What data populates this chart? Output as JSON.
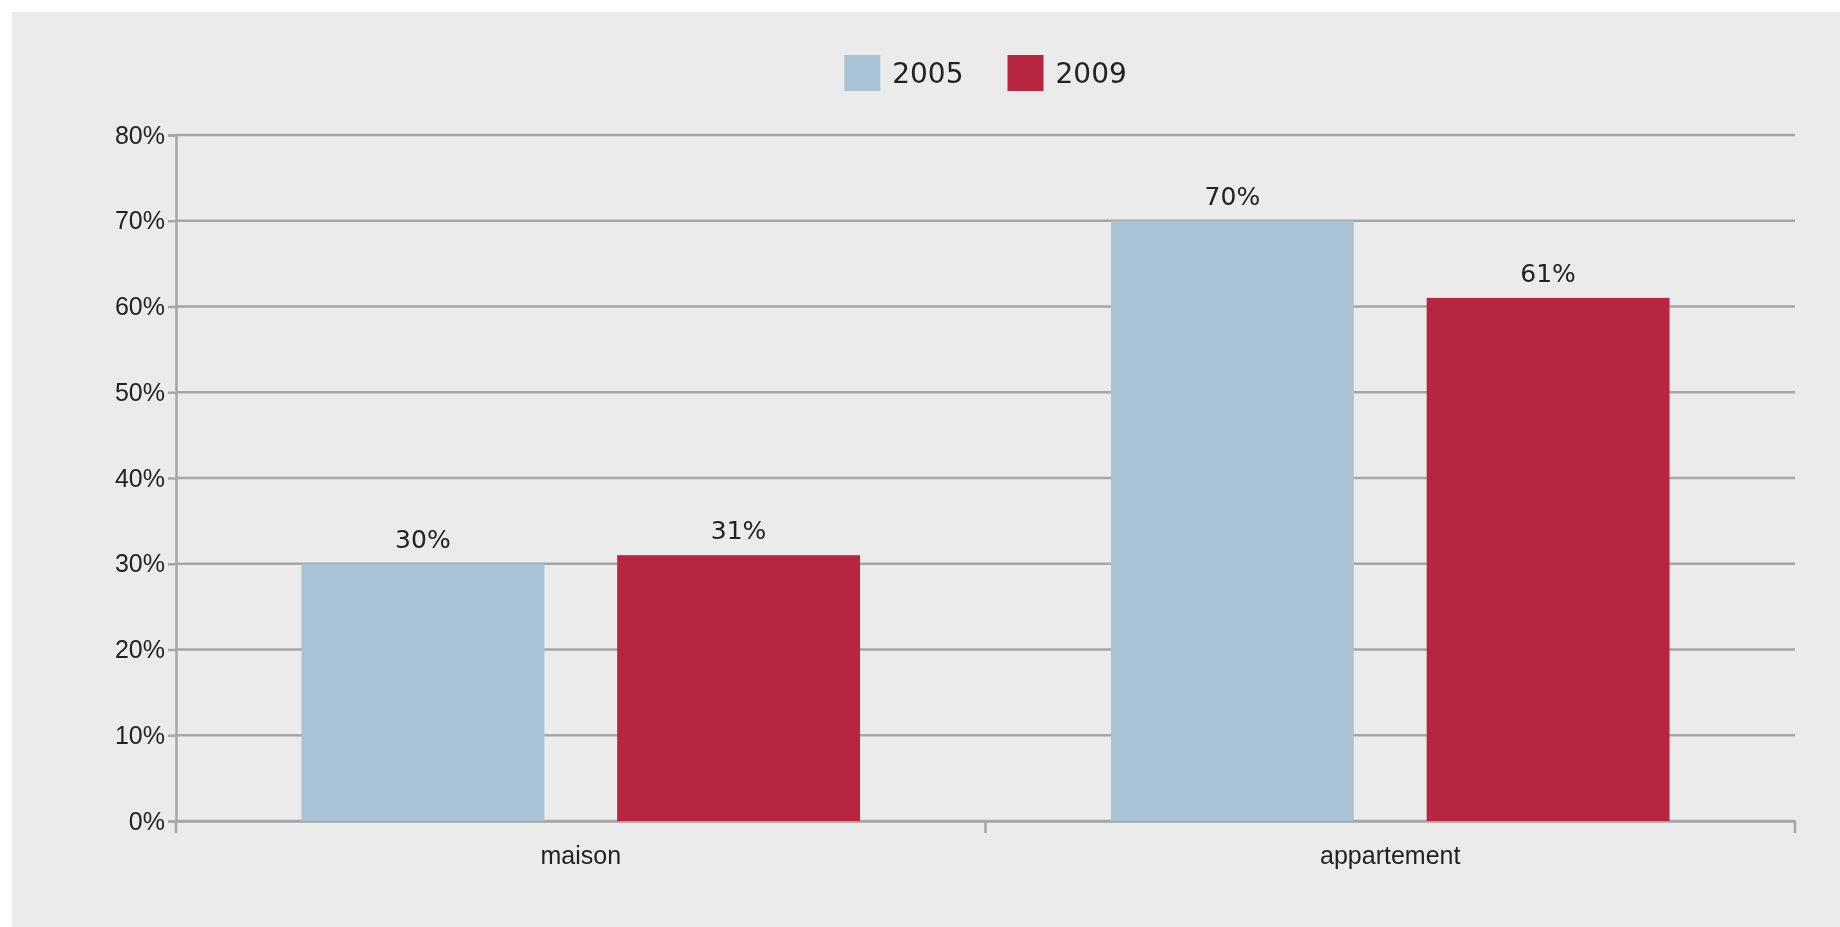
{
  "chart_data": {
    "type": "bar",
    "categories": [
      "maison",
      "appartement"
    ],
    "series": [
      {
        "name": "2005",
        "color": "#a7c3d5",
        "values": [
          30,
          70
        ],
        "value_labels": [
          "30%",
          "70%"
        ]
      },
      {
        "name": "2009",
        "color": "#b82541",
        "values": [
          31,
          61
        ],
        "value_labels": [
          "31%",
          "61%"
        ]
      }
    ],
    "ylim": [
      0,
      80
    ],
    "yticks": [
      {
        "value": 0,
        "label": "0%"
      },
      {
        "value": 10,
        "label": "10%"
      },
      {
        "value": 20,
        "label": "20%"
      },
      {
        "value": 30,
        "label": "30%"
      },
      {
        "value": 40,
        "label": "40%"
      },
      {
        "value": 50,
        "label": "50%"
      },
      {
        "value": 60,
        "label": "60%"
      },
      {
        "value": 70,
        "label": "70%"
      },
      {
        "value": 80,
        "label": "80%"
      }
    ],
    "grid": "y",
    "legend": "top"
  }
}
